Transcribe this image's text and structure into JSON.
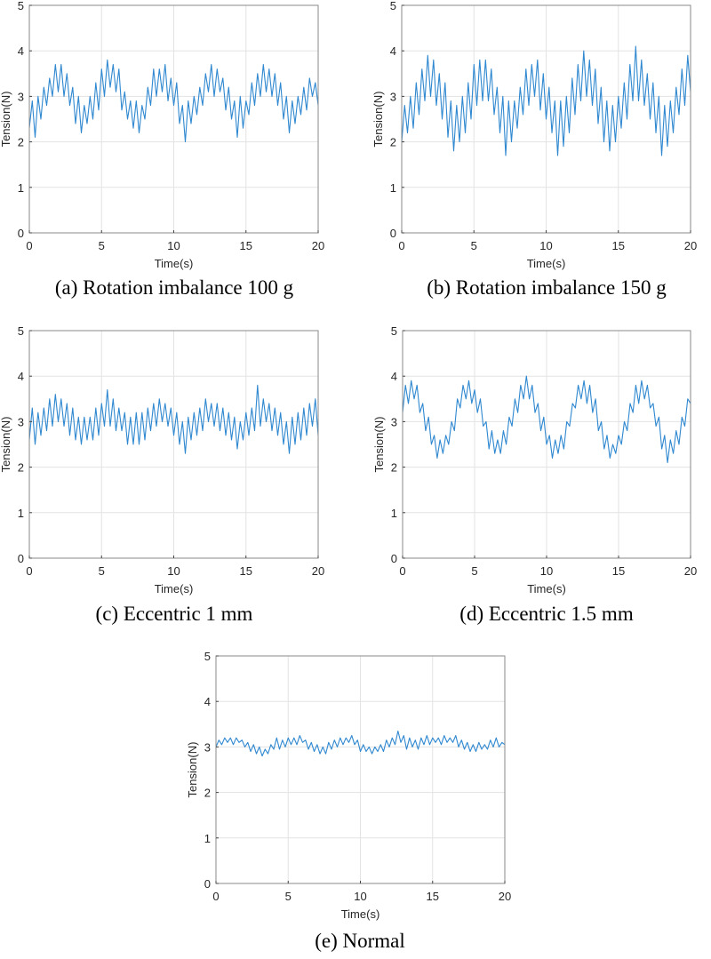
{
  "chart_data": [
    {
      "type": "line",
      "caption": "(a) Rotation imbalance 100 g",
      "xlabel": "Time(s)",
      "ylabel": "Tension(N)",
      "xlim": [
        0,
        20
      ],
      "ylim": [
        0,
        5
      ],
      "xticks": [
        0,
        5,
        10,
        15,
        20
      ],
      "yticks": [
        0,
        1,
        2,
        3,
        4,
        5
      ],
      "grid": true,
      "line_color": "#2f88d0",
      "values": [
        2.3,
        2.9,
        2.1,
        3.0,
        2.5,
        3.2,
        2.8,
        3.4,
        3.0,
        3.7,
        3.1,
        3.7,
        3.0,
        3.5,
        2.8,
        3.2,
        2.4,
        3.0,
        2.2,
        2.8,
        2.4,
        3.0,
        2.5,
        3.3,
        2.7,
        3.6,
        3.0,
        3.8,
        3.2,
        3.7,
        3.1,
        3.6,
        2.7,
        3.1,
        2.5,
        2.9,
        2.3,
        2.9,
        2.2,
        2.8,
        2.5,
        3.2,
        2.8,
        3.6,
        3.0,
        3.6,
        3.1,
        3.7,
        2.9,
        3.4,
        2.8,
        3.3,
        2.4,
        2.8,
        2.0,
        2.9,
        2.4,
        3.0,
        2.6,
        3.2,
        2.8,
        3.5,
        3.1,
        3.7,
        3.0,
        3.6,
        3.1,
        3.4,
        2.7,
        3.2,
        2.5,
        2.9,
        2.1,
        3.0,
        2.3,
        2.9,
        2.6,
        3.3,
        2.8,
        3.5,
        3.0,
        3.7,
        3.1,
        3.6,
        3.0,
        3.5,
        2.8,
        3.3,
        2.5,
        3.0,
        2.2,
        2.9,
        2.4,
        3.0,
        2.6,
        3.2,
        2.7,
        3.4,
        3.0,
        3.3,
        2.8
      ]
    },
    {
      "type": "line",
      "caption": "(b) Rotation imbalance 150 g",
      "xlabel": "Time(s)",
      "ylabel": "Tension(N)",
      "xlim": [
        0,
        20
      ],
      "ylim": [
        0,
        5
      ],
      "xticks": [
        0,
        5,
        10,
        15,
        20
      ],
      "yticks": [
        0,
        1,
        2,
        3,
        4,
        5
      ],
      "grid": true,
      "line_color": "#2f88d0",
      "values": [
        2.0,
        2.8,
        2.2,
        3.0,
        2.3,
        3.3,
        2.6,
        3.6,
        2.9,
        3.9,
        3.0,
        3.8,
        2.8,
        3.5,
        2.5,
        3.3,
        2.1,
        2.9,
        1.8,
        2.8,
        2.0,
        3.0,
        2.2,
        3.3,
        2.5,
        3.7,
        2.8,
        3.8,
        2.9,
        3.8,
        2.9,
        3.6,
        2.6,
        3.2,
        2.2,
        3.0,
        1.7,
        2.9,
        2.0,
        2.9,
        2.3,
        3.2,
        2.6,
        3.6,
        2.8,
        3.7,
        3.0,
        3.8,
        2.7,
        3.5,
        2.5,
        3.2,
        2.2,
        2.9,
        1.7,
        2.9,
        1.9,
        3.0,
        2.2,
        3.4,
        2.6,
        3.7,
        2.9,
        4.0,
        3.0,
        3.8,
        2.8,
        3.6,
        2.4,
        3.2,
        2.0,
        2.9,
        1.8,
        2.8,
        2.0,
        3.0,
        2.3,
        3.3,
        2.5,
        3.7,
        2.9,
        4.1,
        2.9,
        3.8,
        2.8,
        3.5,
        2.5,
        3.3,
        2.2,
        3.0,
        1.7,
        2.8,
        1.9,
        2.9,
        2.2,
        3.2,
        2.6,
        3.6,
        2.8,
        3.9,
        3.1
      ]
    },
    {
      "type": "line",
      "caption": "(c) Eccentric 1 mm",
      "xlabel": "Time(s)",
      "ylabel": "Tension(N)",
      "xlim": [
        0,
        20
      ],
      "ylim": [
        0,
        5
      ],
      "xticks": [
        0,
        5,
        10,
        15,
        20
      ],
      "yticks": [
        0,
        1,
        2,
        3,
        4,
        5
      ],
      "grid": true,
      "line_color": "#2f88d0",
      "values": [
        2.6,
        3.3,
        2.5,
        3.2,
        2.7,
        3.3,
        2.8,
        3.5,
        2.9,
        3.6,
        3.0,
        3.5,
        2.9,
        3.4,
        2.7,
        3.3,
        2.6,
        3.1,
        2.5,
        3.1,
        2.6,
        3.1,
        2.6,
        3.3,
        2.7,
        3.4,
        2.9,
        3.7,
        2.9,
        3.5,
        2.8,
        3.3,
        2.8,
        3.2,
        2.5,
        3.1,
        2.5,
        3.2,
        2.5,
        3.2,
        2.6,
        3.3,
        2.8,
        3.4,
        2.9,
        3.5,
        3.0,
        3.4,
        2.9,
        3.3,
        2.7,
        3.2,
        2.5,
        3.0,
        2.3,
        3.1,
        2.6,
        3.2,
        2.7,
        3.3,
        2.8,
        3.5,
        3.0,
        3.4,
        2.9,
        3.4,
        2.8,
        3.3,
        2.7,
        3.2,
        2.6,
        3.1,
        2.4,
        3.0,
        2.6,
        3.2,
        2.7,
        3.3,
        2.8,
        3.8,
        2.9,
        3.5,
        3.0,
        3.4,
        2.8,
        3.3,
        2.7,
        3.2,
        2.5,
        3.0,
        2.3,
        3.1,
        2.5,
        3.2,
        2.6,
        3.3,
        2.7,
        3.4,
        2.9,
        3.5,
        2.7
      ]
    },
    {
      "type": "line",
      "caption": "(d) Eccentric 1.5 mm",
      "xlabel": "Time(s)",
      "ylabel": "Tension(N)",
      "xlim": [
        0,
        20
      ],
      "ylim": [
        0,
        5
      ],
      "xticks": [
        0,
        5,
        10,
        15,
        20
      ],
      "yticks": [
        0,
        1,
        2,
        3,
        4,
        5
      ],
      "grid": true,
      "line_color": "#2f88d0",
      "values": [
        3.2,
        3.8,
        3.4,
        3.9,
        3.5,
        3.8,
        3.2,
        3.4,
        2.8,
        3.1,
        2.5,
        2.7,
        2.2,
        2.6,
        2.3,
        2.7,
        2.5,
        3.0,
        2.8,
        3.5,
        3.3,
        3.8,
        3.5,
        3.9,
        3.4,
        3.7,
        3.2,
        3.5,
        2.9,
        3.0,
        2.4,
        2.8,
        2.3,
        2.6,
        2.3,
        2.8,
        2.5,
        3.1,
        2.9,
        3.5,
        3.2,
        3.8,
        3.5,
        4.0,
        3.5,
        3.8,
        3.2,
        3.4,
        2.8,
        3.1,
        2.5,
        2.7,
        2.2,
        2.6,
        2.3,
        2.7,
        2.4,
        3.0,
        2.9,
        3.4,
        3.3,
        3.8,
        3.5,
        3.9,
        3.4,
        3.8,
        3.2,
        3.5,
        2.8,
        3.0,
        2.4,
        2.7,
        2.2,
        2.5,
        2.3,
        2.7,
        2.5,
        3.0,
        2.8,
        3.4,
        3.2,
        3.8,
        3.4,
        3.9,
        3.5,
        3.8,
        3.3,
        3.4,
        2.9,
        3.1,
        2.4,
        2.7,
        2.1,
        2.6,
        2.3,
        2.8,
        2.5,
        3.1,
        2.9,
        3.5,
        3.4
      ]
    },
    {
      "type": "line",
      "caption": "(e) Normal",
      "xlabel": "Time(s)",
      "ylabel": "Tension(N)",
      "xlim": [
        0,
        20
      ],
      "ylim": [
        0,
        5
      ],
      "xticks": [
        0,
        5,
        10,
        15,
        20
      ],
      "yticks": [
        0,
        1,
        2,
        3,
        4,
        5
      ],
      "grid": true,
      "line_color": "#2f88d0",
      "values": [
        3.0,
        3.15,
        3.05,
        3.2,
        3.1,
        3.2,
        3.05,
        3.2,
        3.1,
        3.15,
        3.0,
        3.1,
        2.9,
        3.05,
        2.85,
        3.0,
        2.8,
        2.95,
        2.85,
        3.05,
        2.95,
        3.2,
        2.95,
        3.15,
        3.0,
        3.2,
        3.05,
        3.2,
        3.05,
        3.25,
        3.1,
        3.15,
        2.95,
        3.1,
        2.9,
        3.05,
        2.85,
        3.0,
        2.85,
        3.1,
        2.95,
        3.15,
        3.0,
        3.2,
        3.05,
        3.2,
        3.1,
        3.25,
        3.05,
        3.15,
        2.9,
        3.05,
        2.9,
        3.0,
        2.85,
        3.0,
        2.9,
        3.05,
        2.9,
        3.15,
        3.0,
        3.2,
        3.05,
        3.35,
        3.1,
        3.25,
        2.95,
        3.2,
        3.0,
        3.15,
        2.95,
        3.2,
        3.05,
        3.25,
        3.05,
        3.2,
        3.1,
        3.2,
        3.05,
        3.25,
        3.1,
        3.2,
        3.1,
        3.25,
        3.0,
        3.15,
        2.95,
        3.1,
        2.9,
        3.05,
        2.9,
        3.1,
        2.95,
        3.05,
        2.95,
        3.15,
        3.0,
        3.2,
        3.0,
        3.1,
        3.05
      ]
    }
  ]
}
